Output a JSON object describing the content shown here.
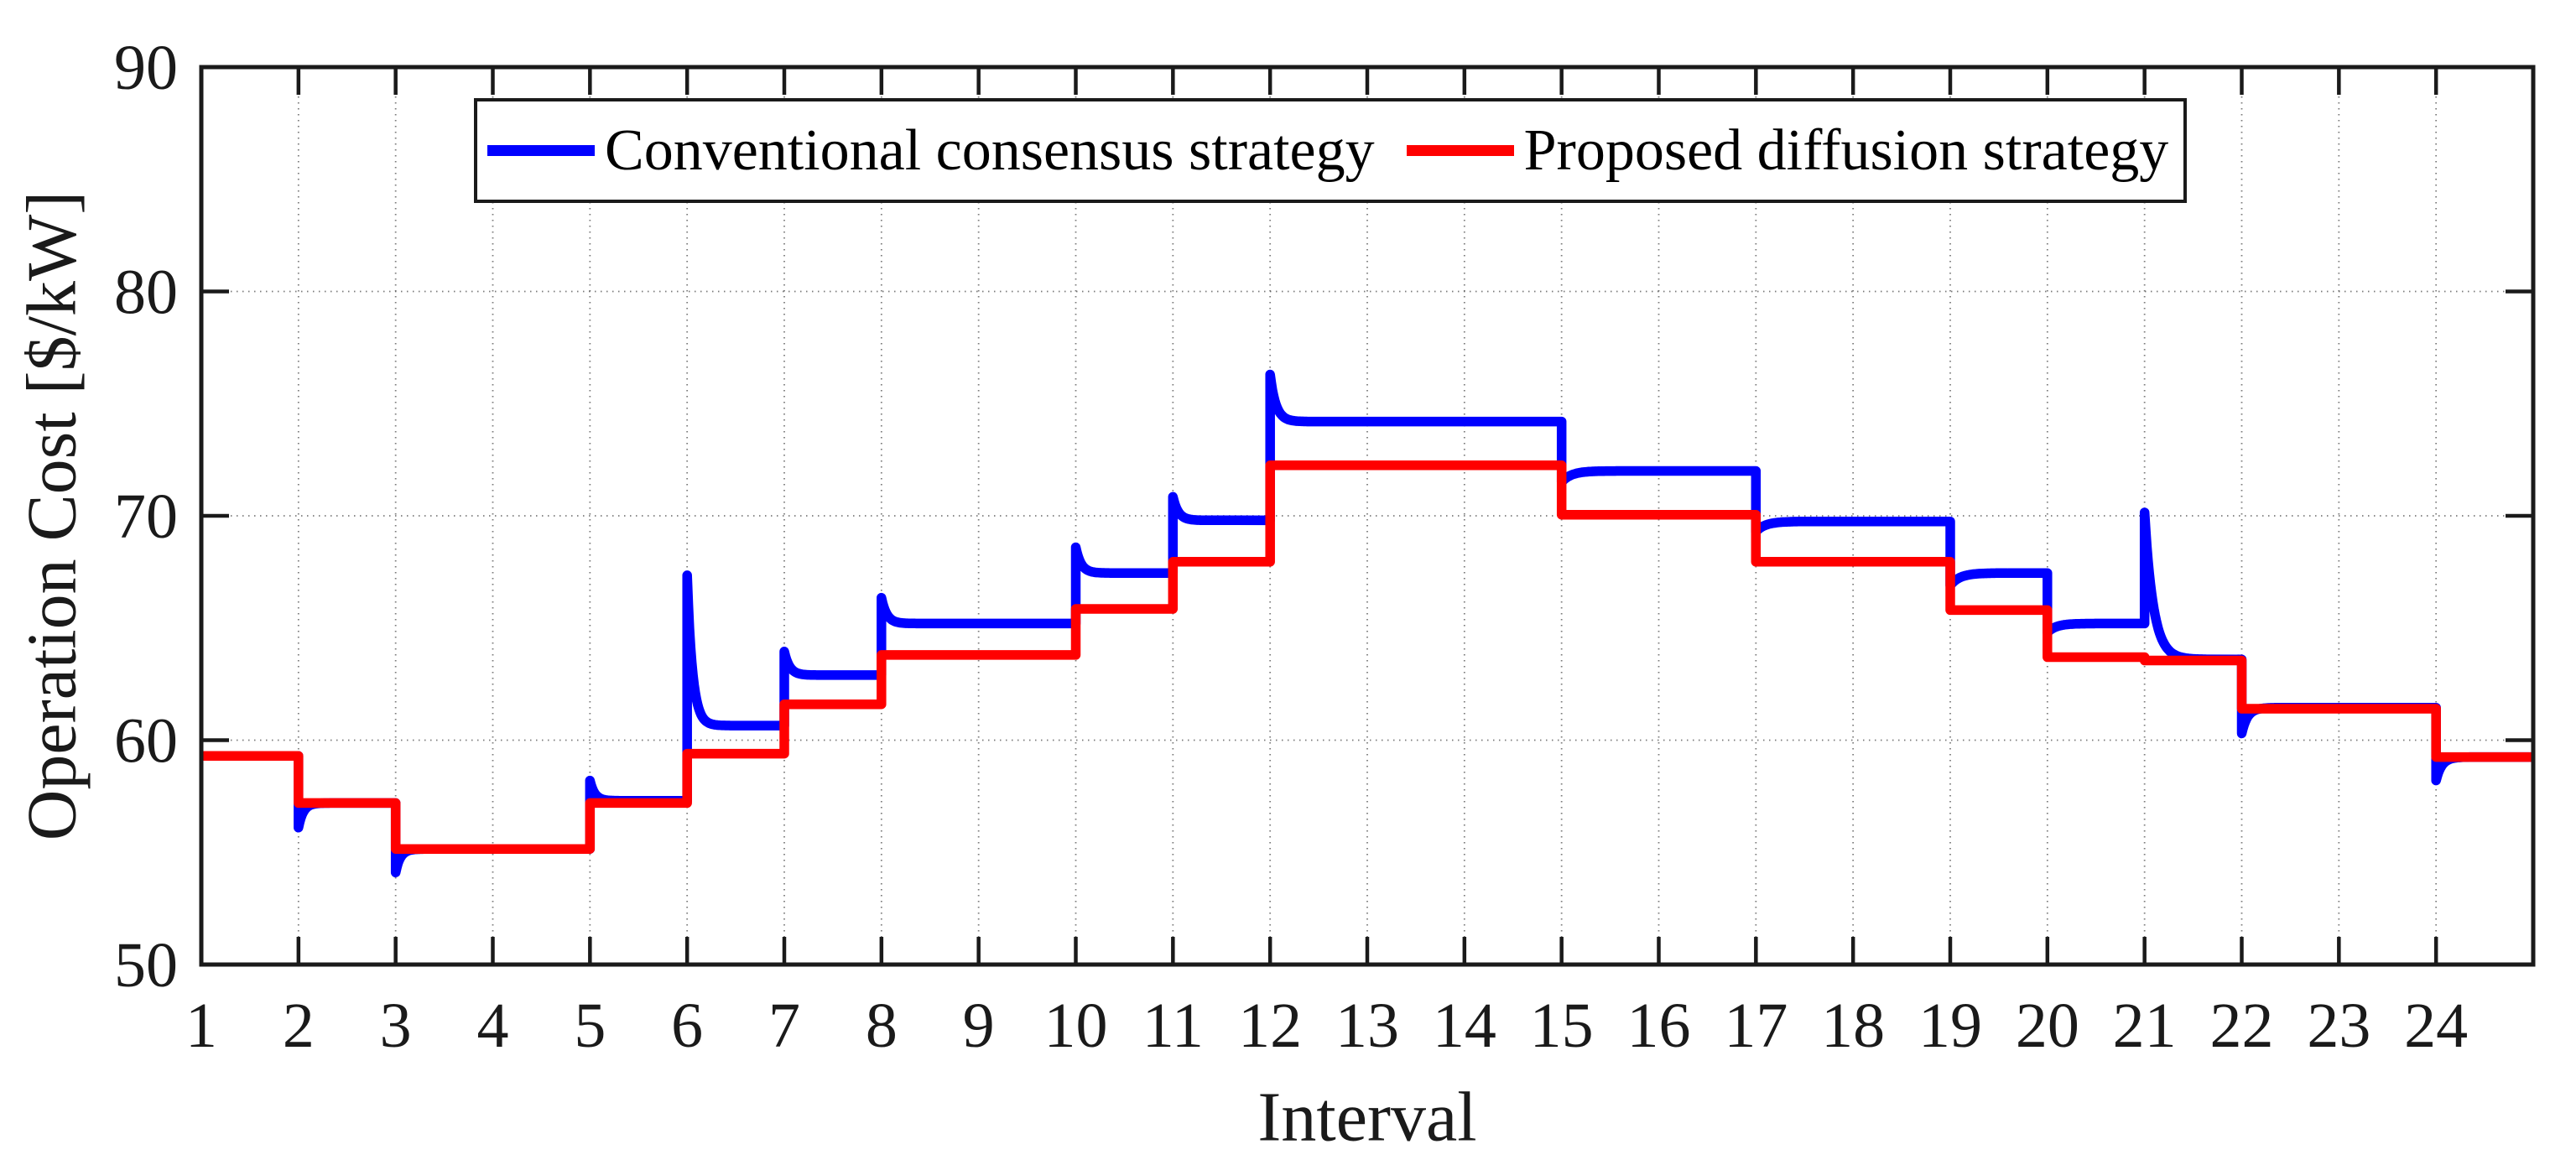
{
  "chart_data": {
    "type": "line",
    "title": "",
    "xlabel": "Interval",
    "ylabel": "Operation Cost [$/kW]",
    "xlim": [
      1,
      25
    ],
    "ylim": [
      50,
      90
    ],
    "x_ticks": [
      1,
      2,
      3,
      4,
      5,
      6,
      7,
      8,
      9,
      10,
      11,
      12,
      13,
      14,
      15,
      16,
      17,
      18,
      19,
      20,
      21,
      22,
      23,
      24
    ],
    "y_ticks": [
      50,
      60,
      70,
      80,
      90
    ],
    "grid": "dotted",
    "legend_position": "north",
    "categories_note": "x = dispatch interval 1-24, step curves held one interval each",
    "series": [
      {
        "name": "Conventional consensus strategy",
        "color": "#0000ff",
        "style": "step-with-transients",
        "intervals": [
          {
            "x": 1,
            "settle": 59.3
          },
          {
            "x": 2,
            "settle": 57.2,
            "peak": 56.1,
            "tau": 0.05
          },
          {
            "x": 3,
            "settle": 55.15,
            "peak": 54.1,
            "tau": 0.05
          },
          {
            "x": 4,
            "settle": 55.15
          },
          {
            "x": 5,
            "settle": 57.3,
            "peak": 58.2,
            "tau": 0.05
          },
          {
            "x": 6,
            "settle": 60.65,
            "peak": 67.35,
            "tau": 0.055
          },
          {
            "x": 7,
            "settle": 62.9,
            "peak": 63.95,
            "tau": 0.055
          },
          {
            "x": 8,
            "settle": 65.2,
            "peak": 66.35,
            "tau": 0.055
          },
          {
            "x": 9,
            "settle": 65.2
          },
          {
            "x": 10,
            "settle": 67.45,
            "peak": 68.6,
            "tau": 0.055
          },
          {
            "x": 11,
            "settle": 69.8,
            "peak": 70.85,
            "tau": 0.055
          },
          {
            "x": 12,
            "settle": 74.2,
            "peak": 76.3,
            "tau": 0.06
          },
          {
            "x": 13,
            "settle": 74.2
          },
          {
            "x": 14,
            "settle": 74.2
          },
          {
            "x": 15,
            "settle": 72.0,
            "peak": 71.5,
            "tau": 0.1
          },
          {
            "x": 16,
            "settle": 72.0
          },
          {
            "x": 17,
            "settle": 69.75,
            "peak": 69.3,
            "tau": 0.1
          },
          {
            "x": 18,
            "settle": 69.75
          },
          {
            "x": 19,
            "settle": 67.45,
            "peak": 66.9,
            "tau": 0.1
          },
          {
            "x": 20,
            "settle": 65.2,
            "peak": 64.8,
            "tau": 0.09
          },
          {
            "x": 21,
            "settle": 63.6,
            "peak": 70.15,
            "tau": 0.09
          },
          {
            "x": 22,
            "settle": 61.45,
            "peak": 60.3,
            "tau": 0.06
          },
          {
            "x": 23,
            "settle": 61.45
          },
          {
            "x": 24,
            "settle": 59.25,
            "peak": 58.2,
            "tau": 0.06
          }
        ]
      },
      {
        "name": "Proposed diffusion strategy",
        "color": "#ff0000",
        "style": "step",
        "levels": [
          59.3,
          57.2,
          55.15,
          55.15,
          57.2,
          59.4,
          61.6,
          63.8,
          63.8,
          65.85,
          67.95,
          72.25,
          72.25,
          72.25,
          70.05,
          70.05,
          67.95,
          67.95,
          65.8,
          63.7,
          63.55,
          61.4,
          61.4,
          59.25
        ]
      }
    ]
  }
}
